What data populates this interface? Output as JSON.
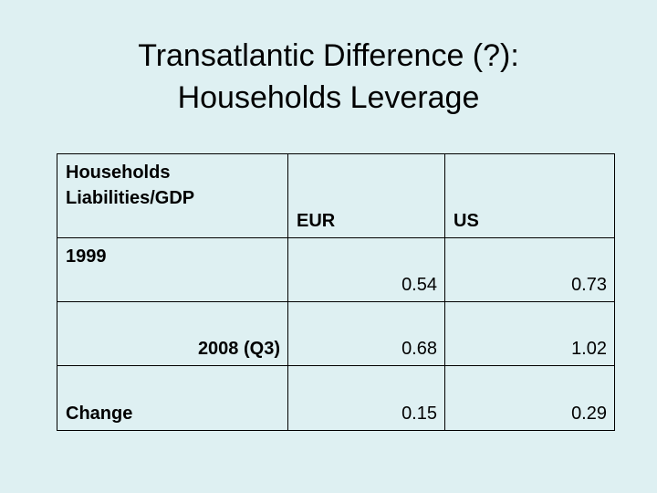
{
  "title": {
    "line1": "Transatlantic Difference (?):",
    "line2": "Households Leverage"
  },
  "table": {
    "corner_label": "Households Liabilities/GDP",
    "columns": [
      "EUR",
      "US"
    ],
    "rows": [
      {
        "label": "1999",
        "eur": "0.54",
        "us": "0.73"
      },
      {
        "label": "2008 (Q3)",
        "eur": "0.68",
        "us": "1.02"
      },
      {
        "label": "Change",
        "eur": "0.15",
        "us": "0.29"
      }
    ]
  },
  "colors": {
    "background": "#def0f2",
    "text": "#000000",
    "table_border": "#000000"
  },
  "chart_data": {
    "type": "table",
    "title": "Households Liabilities/GDP",
    "categories": [
      "1999",
      "2008 (Q3)",
      "Change"
    ],
    "series": [
      {
        "name": "EUR",
        "values": [
          0.54,
          0.68,
          0.15
        ]
      },
      {
        "name": "US",
        "values": [
          0.73,
          1.02,
          0.29
        ]
      }
    ]
  }
}
